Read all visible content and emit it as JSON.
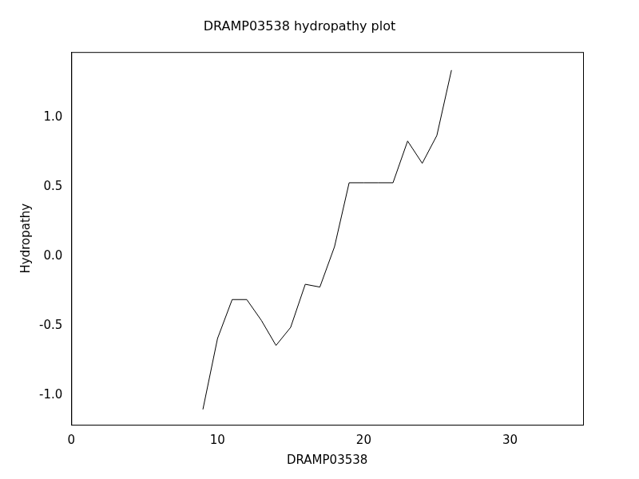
{
  "chart_data": {
    "type": "line",
    "title": "DRAMP03538 hydropathy plot",
    "x_label": "DRAMP03538",
    "y_label": "Hydropathy",
    "x": [
      9,
      10,
      11,
      12,
      13,
      14,
      15,
      16,
      17,
      18,
      19,
      20,
      21,
      22,
      23,
      24,
      25,
      26
    ],
    "values": [
      -1.1,
      -0.59,
      -0.31,
      -0.31,
      -0.46,
      -0.64,
      -0.51,
      -0.2,
      -0.22,
      0.07,
      0.53,
      0.53,
      0.53,
      0.53,
      0.83,
      0.67,
      0.87,
      1.34
    ],
    "color": "#000000",
    "xlim": [
      0,
      35
    ],
    "xticks": [
      0,
      10,
      20,
      30
    ],
    "ylim": [
      -1.21,
      1.47
    ],
    "yticks": [
      {
        "value": -1,
        "label": "-1.0"
      },
      {
        "value": -0.5,
        "label": "-0.5"
      },
      {
        "value": 0,
        "label": "0.0"
      },
      {
        "value": 0.5,
        "label": "0.5"
      },
      {
        "value": 1,
        "label": "1.0"
      }
    ],
    "grid": false
  }
}
